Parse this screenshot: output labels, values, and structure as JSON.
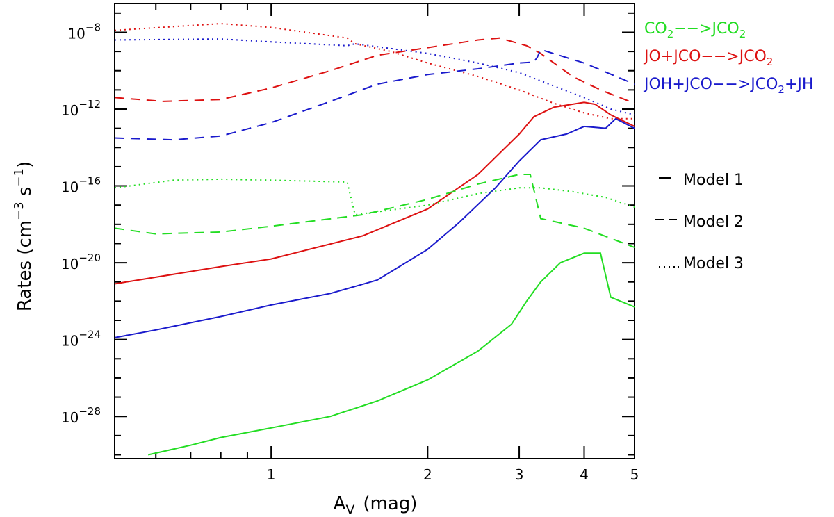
{
  "chart_data": {
    "type": "line",
    "title": "",
    "xlabel": "A",
    "xlabel_sub": "V",
    "xlabel_unit": "(mag)",
    "ylabel_main": "Rates (cm",
    "ylabel_exp1": "−3",
    "ylabel_mid": " s",
    "ylabel_exp2": "−1",
    "ylabel_end": ")",
    "xscale": "log",
    "yscale": "log",
    "xlim": [
      0.5,
      5.0
    ],
    "ylim_log10": [
      -30.2,
      -6.5
    ],
    "x_ticks": [
      {
        "value": 1,
        "label": "1"
      },
      {
        "value": 2,
        "label": "2"
      },
      {
        "value": 3,
        "label": "3"
      },
      {
        "value": 4,
        "label": "4"
      },
      {
        "value": 5,
        "label": "5"
      }
    ],
    "y_ticks": [
      {
        "exp": -8,
        "base": "10",
        "label": "−8"
      },
      {
        "exp": -12,
        "base": "10",
        "label": "−12"
      },
      {
        "exp": -16,
        "base": "10",
        "label": "−16"
      },
      {
        "exp": -20,
        "base": "10",
        "label": "−20"
      },
      {
        "exp": -24,
        "base": "10",
        "label": "−24"
      },
      {
        "exp": -28,
        "base": "10",
        "label": "−28"
      }
    ],
    "reaction_legend": [
      {
        "color": "#22dd22",
        "parts": [
          [
            "CO",
            ""
          ],
          [
            "2",
            "sub"
          ],
          [
            "−−>JCO",
            ""
          ],
          [
            "2",
            "sub"
          ]
        ]
      },
      {
        "color": "#dd1111",
        "parts": [
          [
            "JO+JCO−−>JCO",
            ""
          ],
          [
            "2",
            "sub"
          ]
        ]
      },
      {
        "color": "#1a1acc",
        "parts": [
          [
            "JOH+JCO−−>JCO",
            ""
          ],
          [
            "2",
            "sub"
          ],
          [
            "+JH",
            ""
          ]
        ]
      }
    ],
    "model_legend": [
      {
        "label": "Model 1",
        "dash": "solid"
      },
      {
        "label": "Model 2",
        "dash": "dashed"
      },
      {
        "label": "Model 3",
        "dash": "dotted"
      }
    ],
    "series": [
      {
        "name": "JO+JCO−−>JCO2 Model 1",
        "color": "#dd1111",
        "dash": "solid",
        "points": [
          [
            0.5,
            -21.1
          ],
          [
            0.8,
            -20.2
          ],
          [
            1.0,
            -19.8
          ],
          [
            1.5,
            -18.6
          ],
          [
            2.0,
            -17.2
          ],
          [
            2.5,
            -15.4
          ],
          [
            3.0,
            -13.3
          ],
          [
            3.2,
            -12.4
          ],
          [
            3.5,
            -11.9
          ],
          [
            4.0,
            -11.65
          ],
          [
            4.2,
            -11.75
          ],
          [
            4.5,
            -12.3
          ],
          [
            5.0,
            -12.9
          ]
        ]
      },
      {
        "name": "JO+JCO−−>JCO2 Model 2",
        "color": "#dd1111",
        "dash": "dashed",
        "points": [
          [
            0.5,
            -11.4
          ],
          [
            0.62,
            -11.6
          ],
          [
            0.8,
            -11.5
          ],
          [
            1.0,
            -10.9
          ],
          [
            1.3,
            -10.0
          ],
          [
            1.6,
            -9.2
          ],
          [
            2.0,
            -8.8
          ],
          [
            2.5,
            -8.4
          ],
          [
            2.75,
            -8.3
          ],
          [
            3.1,
            -8.7
          ],
          [
            3.3,
            -9.1
          ],
          [
            3.8,
            -10.3
          ],
          [
            4.3,
            -11.0
          ],
          [
            5.0,
            -11.7
          ]
        ]
      },
      {
        "name": "JO+JCO−−>JCO2 Model 3",
        "color": "#dd1111",
        "dash": "dotted",
        "points": [
          [
            0.5,
            -7.9
          ],
          [
            0.8,
            -7.55
          ],
          [
            1.0,
            -7.75
          ],
          [
            1.4,
            -8.3
          ],
          [
            1.45,
            -8.6
          ],
          [
            1.7,
            -9.0
          ],
          [
            2.0,
            -9.6
          ],
          [
            2.5,
            -10.3
          ],
          [
            3.0,
            -11.0
          ],
          [
            3.5,
            -11.7
          ],
          [
            4.0,
            -12.2
          ],
          [
            4.5,
            -12.5
          ],
          [
            5.0,
            -12.5
          ]
        ]
      },
      {
        "name": "JOH+JCO−−>JCO2+JH Model 1",
        "color": "#1a1acc",
        "dash": "solid",
        "points": [
          [
            0.5,
            -23.9
          ],
          [
            0.6,
            -23.5
          ],
          [
            0.8,
            -22.8
          ],
          [
            1.0,
            -22.2
          ],
          [
            1.3,
            -21.6
          ],
          [
            1.6,
            -20.9
          ],
          [
            2.0,
            -19.3
          ],
          [
            2.3,
            -17.9
          ],
          [
            2.7,
            -16.1
          ],
          [
            3.0,
            -14.7
          ],
          [
            3.3,
            -13.6
          ],
          [
            3.7,
            -13.3
          ],
          [
            4.0,
            -12.9
          ],
          [
            4.2,
            -12.95
          ],
          [
            4.4,
            -13.0
          ],
          [
            4.6,
            -12.5
          ],
          [
            5.0,
            -13.0
          ]
        ]
      },
      {
        "name": "JOH+JCO−−>JCO2+JH Model 2",
        "color": "#1a1acc",
        "dash": "dashed",
        "points": [
          [
            0.5,
            -13.5
          ],
          [
            0.65,
            -13.6
          ],
          [
            0.8,
            -13.4
          ],
          [
            1.0,
            -12.7
          ],
          [
            1.3,
            -11.6
          ],
          [
            1.6,
            -10.7
          ],
          [
            2.0,
            -10.2
          ],
          [
            2.5,
            -9.9
          ],
          [
            3.0,
            -9.6
          ],
          [
            3.2,
            -9.55
          ],
          [
            3.25,
            -9.3
          ],
          [
            3.3,
            -8.9
          ],
          [
            4.0,
            -9.6
          ],
          [
            5.0,
            -10.7
          ]
        ]
      },
      {
        "name": "JOH+JCO−−>JCO2+JH Model 3",
        "color": "#1a1acc",
        "dash": "dotted",
        "points": [
          [
            0.5,
            -8.4
          ],
          [
            0.8,
            -8.35
          ],
          [
            1.0,
            -8.5
          ],
          [
            1.4,
            -8.7
          ],
          [
            1.45,
            -8.6
          ],
          [
            2.0,
            -9.1
          ],
          [
            2.5,
            -9.6
          ],
          [
            3.0,
            -10.1
          ],
          [
            3.5,
            -10.8
          ],
          [
            4.0,
            -11.4
          ],
          [
            4.5,
            -12.0
          ],
          [
            5.0,
            -12.3
          ]
        ]
      },
      {
        "name": "CO2−−>JCO2 Model 1",
        "color": "#22dd22",
        "dash": "solid",
        "points": [
          [
            0.58,
            -30.0
          ],
          [
            0.7,
            -29.5
          ],
          [
            0.8,
            -29.1
          ],
          [
            1.0,
            -28.6
          ],
          [
            1.3,
            -28.0
          ],
          [
            1.6,
            -27.2
          ],
          [
            2.0,
            -26.1
          ],
          [
            2.5,
            -24.6
          ],
          [
            2.9,
            -23.2
          ],
          [
            3.1,
            -22.0
          ],
          [
            3.3,
            -21.0
          ],
          [
            3.6,
            -20.0
          ],
          [
            4.0,
            -19.5
          ],
          [
            4.3,
            -19.5
          ],
          [
            4.5,
            -21.8
          ],
          [
            5.0,
            -22.3
          ]
        ]
      },
      {
        "name": "CO2−−>JCO2 Model 2",
        "color": "#22dd22",
        "dash": "dashed",
        "points": [
          [
            0.5,
            -18.2
          ],
          [
            0.6,
            -18.5
          ],
          [
            0.8,
            -18.4
          ],
          [
            1.0,
            -18.1
          ],
          [
            1.5,
            -17.5
          ],
          [
            2.0,
            -16.7
          ],
          [
            2.5,
            -15.9
          ],
          [
            3.0,
            -15.4
          ],
          [
            3.15,
            -15.4
          ],
          [
            3.3,
            -17.7
          ],
          [
            4.0,
            -18.2
          ],
          [
            5.0,
            -19.2
          ]
        ]
      },
      {
        "name": "CO2−−>JCO2 Model 3",
        "color": "#22dd22",
        "dash": "dotted",
        "points": [
          [
            0.5,
            -16.1
          ],
          [
            0.65,
            -15.7
          ],
          [
            0.8,
            -15.65
          ],
          [
            1.0,
            -15.7
          ],
          [
            1.4,
            -15.8
          ],
          [
            1.45,
            -17.5
          ],
          [
            2.0,
            -17.0
          ],
          [
            2.5,
            -16.4
          ],
          [
            3.0,
            -16.1
          ],
          [
            3.3,
            -16.1
          ],
          [
            3.8,
            -16.3
          ],
          [
            4.4,
            -16.6
          ],
          [
            5.0,
            -17.1
          ]
        ]
      }
    ]
  }
}
